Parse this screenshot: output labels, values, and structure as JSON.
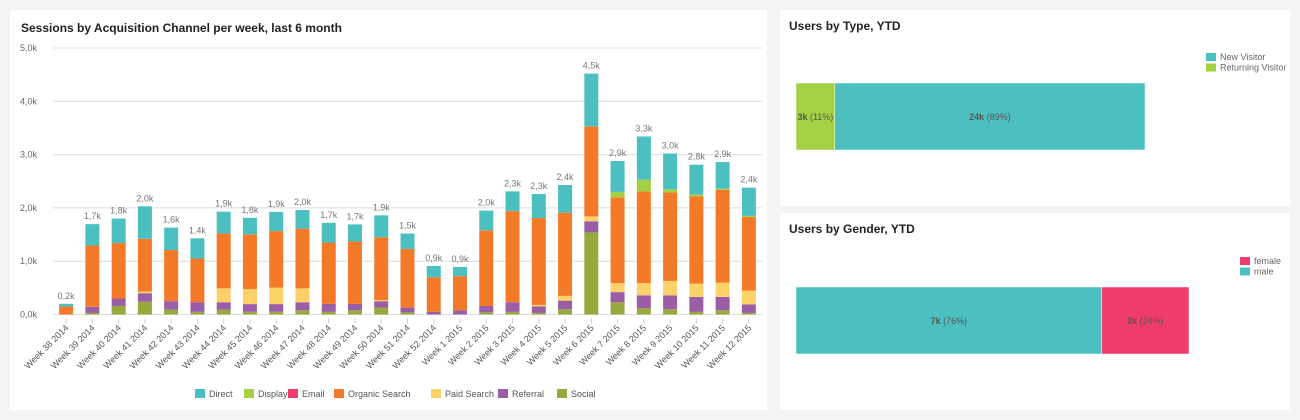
{
  "chart_data": [
    {
      "type": "bar",
      "stacked": true,
      "title": "Sessions by Acquisition Channel per week, last 6 month",
      "xlabel": "",
      "ylabel": "",
      "ylim": [
        0,
        5000
      ],
      "yticks": [
        "0,0k",
        "1,0k",
        "2,0k",
        "3,0k",
        "4,0k",
        "5,0k"
      ],
      "grid": true,
      "legend": "bottom",
      "categories": [
        "Week 38 2014",
        "Week 39 2014",
        "Week 40 2014",
        "Week 41 2014",
        "Week 42 2014",
        "Week 43 2014",
        "Week 44 2014",
        "Week 45 2014",
        "Week 46 2014",
        "Week 47 2014",
        "Week 48 2014",
        "Week 49 2014",
        "Week 50 2014",
        "Week 51 2014",
        "Week 52 2014",
        "Week 1 2015",
        "Week 2 2015",
        "Week 3 2015",
        "Week 4 2015",
        "Week 5 2015",
        "Week 6 2015",
        "Week 7 2015",
        "Week 8 2015",
        "Week 9 2015",
        "Week 10 2015",
        "Week 11 2015",
        "Week 12 2015"
      ],
      "total_labels": [
        "0,2k",
        "1,7k",
        "1,8k",
        "2,0k",
        "1,6k",
        "1,4k",
        "1,9k",
        "1,8k",
        "1,9k",
        "2,0k",
        "1,7k",
        "1,7k",
        "1,9k",
        "1,5k",
        "0,9k",
        "0,9k",
        "2,0k",
        "2,3k",
        "2,3k",
        "2,4k",
        "4,5k",
        "2,9k",
        "3,3k",
        "3,0k",
        "2,8k",
        "2,9k",
        "2,4k"
      ],
      "series": [
        {
          "name": "Social",
          "color": "#97a83c",
          "values": [
            0,
            30,
            160,
            240,
            90,
            50,
            90,
            50,
            50,
            80,
            50,
            80,
            130,
            40,
            0,
            0,
            40,
            50,
            30,
            100,
            1540,
            230,
            120,
            100,
            50,
            80,
            30
          ]
        },
        {
          "name": "Referral",
          "color": "#9b5ea6",
          "values": [
            0,
            115,
            140,
            160,
            160,
            180,
            140,
            145,
            145,
            150,
            150,
            120,
            120,
            90,
            50,
            80,
            120,
            180,
            120,
            160,
            210,
            190,
            240,
            260,
            280,
            250,
            160
          ]
        },
        {
          "name": "Paid Search",
          "color": "#fdd169",
          "values": [
            0,
            0,
            0,
            30,
            0,
            0,
            260,
            280,
            310,
            260,
            0,
            0,
            20,
            0,
            0,
            0,
            0,
            0,
            30,
            90,
            90,
            170,
            230,
            270,
            250,
            270,
            260
          ]
        },
        {
          "name": "Organic Search",
          "color": "#f47a2a",
          "values": [
            150,
            1150,
            1040,
            990,
            960,
            820,
            1030,
            1030,
            1060,
            1120,
            1150,
            1170,
            1180,
            1100,
            650,
            640,
            1420,
            1710,
            1630,
            1560,
            1690,
            1610,
            1720,
            1660,
            1640,
            1740,
            1380
          ]
        },
        {
          "name": "Email",
          "color": "#f03c6a",
          "values": [
            0,
            0,
            0,
            0,
            0,
            0,
            0,
            0,
            0,
            0,
            0,
            0,
            0,
            0,
            0,
            0,
            0,
            0,
            0,
            0,
            0,
            0,
            0,
            0,
            0,
            0,
            0
          ]
        },
        {
          "name": "Display",
          "color": "#a4d143",
          "values": [
            0,
            0,
            0,
            0,
            0,
            0,
            0,
            0,
            0,
            0,
            0,
            0,
            0,
            0,
            0,
            0,
            0,
            0,
            0,
            0,
            0,
            100,
            220,
            60,
            30,
            20,
            20
          ]
        },
        {
          "name": "Direct",
          "color": "#4cc0c0",
          "values": [
            50,
            400,
            460,
            610,
            420,
            380,
            410,
            310,
            360,
            350,
            370,
            320,
            410,
            290,
            210,
            170,
            370,
            370,
            450,
            520,
            990,
            580,
            810,
            670,
            560,
            500,
            530
          ]
        }
      ],
      "legend_order": [
        "Direct",
        "Display",
        "Email",
        "Organic Search",
        "Paid Search",
        "Referral",
        "Social"
      ]
    },
    {
      "type": "bar",
      "orientation": "horizontal",
      "stacked": true,
      "title": "Users by Type, YTD",
      "legend": "top-right",
      "series": [
        {
          "name": "Returning Visitor",
          "color": "#a4d143",
          "value": 3000,
          "label": "3k",
          "pct": "(11%)"
        },
        {
          "name": "New Visitor",
          "color": "#4cc0c0",
          "value": 24000,
          "label": "24k",
          "pct": "(89%)"
        }
      ],
      "legend_order": [
        "New Visitor",
        "Returning Visitor"
      ]
    },
    {
      "type": "bar",
      "orientation": "horizontal",
      "stacked": true,
      "title": "Users by Gender, YTD",
      "legend": "top-right",
      "series": [
        {
          "name": "male",
          "color": "#4cc0c0",
          "value": 7000,
          "label": "7k",
          "pct": "(76%)"
        },
        {
          "name": "female",
          "color": "#f03c6a",
          "value": 2000,
          "label": "2k",
          "pct": "(24%)"
        }
      ],
      "legend_order": [
        "female",
        "male"
      ]
    }
  ]
}
